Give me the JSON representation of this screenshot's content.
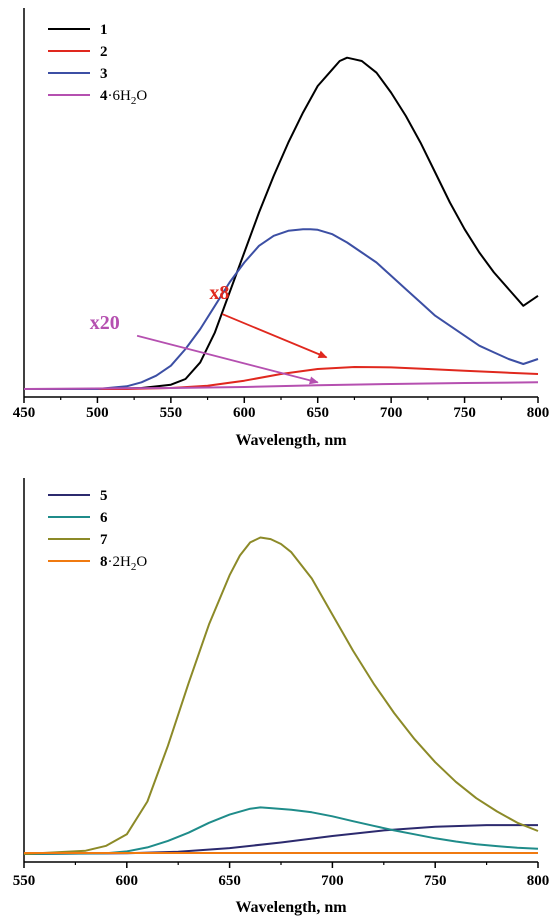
{
  "chart_data": [
    {
      "type": "line",
      "xlabel": "Wavelength, nm",
      "ylabel": "",
      "xlim": [
        450,
        800
      ],
      "ylim": [
        0,
        1
      ],
      "xticks": [
        "450",
        "500",
        "550",
        "600",
        "650",
        "700",
        "750",
        "800"
      ],
      "y_tick_labels": "none",
      "grid": false,
      "legend_position": "top-left",
      "series": [
        {
          "name_num": "1",
          "name_rest": "",
          "color": "#000000",
          "x": [
            450,
            500,
            530,
            550,
            560,
            570,
            580,
            590,
            600,
            610,
            620,
            630,
            640,
            650,
            660,
            665,
            670,
            675,
            680,
            690,
            700,
            710,
            720,
            730,
            740,
            750,
            760,
            770,
            780,
            790,
            800
          ],
          "y": [
            0.0,
            0.0,
            0.003,
            0.013,
            0.03,
            0.08,
            0.17,
            0.29,
            0.41,
            0.53,
            0.64,
            0.74,
            0.83,
            0.91,
            0.96,
            0.985,
            0.995,
            0.99,
            0.985,
            0.95,
            0.89,
            0.82,
            0.74,
            0.65,
            0.56,
            0.48,
            0.41,
            0.35,
            0.3,
            0.25,
            0.28
          ]
        },
        {
          "name_num": "2",
          "name_rest": "",
          "color": "#e0281e",
          "x": [
            450,
            520,
            550,
            575,
            600,
            625,
            650,
            675,
            700,
            725,
            750,
            775,
            800
          ],
          "y": [
            0.0,
            0.0,
            0.003,
            0.01,
            0.025,
            0.045,
            0.06,
            0.066,
            0.065,
            0.06,
            0.055,
            0.05,
            0.045
          ]
        },
        {
          "name_num": "3",
          "name_rest": "",
          "color": "#3c4fa4",
          "x": [
            450,
            500,
            520,
            530,
            540,
            550,
            560,
            570,
            580,
            590,
            600,
            610,
            620,
            630,
            640,
            645,
            650,
            660,
            670,
            680,
            690,
            700,
            710,
            720,
            730,
            740,
            750,
            760,
            770,
            780,
            790,
            800
          ],
          "y": [
            0.0,
            0.0,
            0.008,
            0.02,
            0.04,
            0.07,
            0.12,
            0.18,
            0.25,
            0.32,
            0.38,
            0.43,
            0.46,
            0.475,
            0.48,
            0.48,
            0.478,
            0.465,
            0.44,
            0.41,
            0.38,
            0.34,
            0.3,
            0.26,
            0.22,
            0.19,
            0.16,
            0.13,
            0.11,
            0.09,
            0.075,
            0.09
          ]
        },
        {
          "name_num": "4",
          "name_rest": "·6H",
          "name_sub": "2",
          "name_tail": "O",
          "color": "#b550b0",
          "x": [
            450,
            550,
            600,
            650,
            700,
            750,
            800
          ],
          "y": [
            0.0,
            0.003,
            0.006,
            0.011,
            0.015,
            0.018,
            0.02
          ]
        }
      ],
      "annotations": [
        {
          "text": "x8",
          "color": "#e0281e",
          "text_x": 583,
          "text_y": 0.27,
          "arrow_from_x": 585,
          "arrow_from_y": 0.225,
          "arrow_to_x": 656,
          "arrow_to_y": 0.095
        },
        {
          "text": "x20",
          "color": "#b550b0",
          "text_x": 505,
          "text_y": 0.18,
          "arrow_from_x": 527,
          "arrow_from_y": 0.16,
          "arrow_to_x": 650,
          "arrow_to_y": 0.02
        }
      ]
    },
    {
      "type": "line",
      "xlabel": "Wavelength, nm",
      "ylabel": "",
      "xlim": [
        550,
        800
      ],
      "ylim": [
        0,
        1
      ],
      "xticks": [
        "550",
        "600",
        "650",
        "700",
        "750",
        "800"
      ],
      "y_tick_labels": "none",
      "grid": false,
      "legend_position": "top-left",
      "series": [
        {
          "name_num": "5",
          "name_rest": "",
          "color": "#2c2a6e",
          "x": [
            550,
            600,
            625,
            650,
            675,
            700,
            725,
            750,
            775,
            800
          ],
          "y": [
            0.0,
            0.002,
            0.007,
            0.018,
            0.035,
            0.055,
            0.072,
            0.083,
            0.088,
            0.088
          ]
        },
        {
          "name_num": "6",
          "name_rest": "",
          "color": "#1f8c8a",
          "x": [
            550,
            590,
            600,
            610,
            620,
            630,
            640,
            650,
            660,
            665,
            670,
            680,
            690,
            700,
            710,
            720,
            730,
            740,
            750,
            760,
            770,
            780,
            790,
            800
          ],
          "y": [
            0.0,
            0.002,
            0.008,
            0.02,
            0.04,
            0.065,
            0.095,
            0.12,
            0.138,
            0.142,
            0.14,
            0.135,
            0.127,
            0.115,
            0.1,
            0.086,
            0.072,
            0.06,
            0.048,
            0.038,
            0.03,
            0.024,
            0.019,
            0.016
          ]
        },
        {
          "name_num": "7",
          "name_rest": "",
          "color": "#8c8a28",
          "x": [
            550,
            580,
            590,
            600,
            610,
            620,
            630,
            640,
            650,
            655,
            660,
            665,
            670,
            675,
            680,
            690,
            700,
            710,
            720,
            730,
            740,
            750,
            760,
            770,
            780,
            790,
            800
          ],
          "y": [
            0.0,
            0.01,
            0.025,
            0.06,
            0.16,
            0.33,
            0.52,
            0.7,
            0.85,
            0.91,
            0.95,
            0.965,
            0.96,
            0.945,
            0.92,
            0.84,
            0.73,
            0.62,
            0.52,
            0.43,
            0.35,
            0.28,
            0.22,
            0.17,
            0.13,
            0.095,
            0.07
          ]
        },
        {
          "name_num": "8",
          "name_rest": "·2H",
          "name_sub": "2",
          "name_tail": "O",
          "color": "#f07a10",
          "x": [
            550,
            800
          ],
          "y": [
            0.003,
            0.003
          ]
        }
      ],
      "annotations": []
    }
  ]
}
